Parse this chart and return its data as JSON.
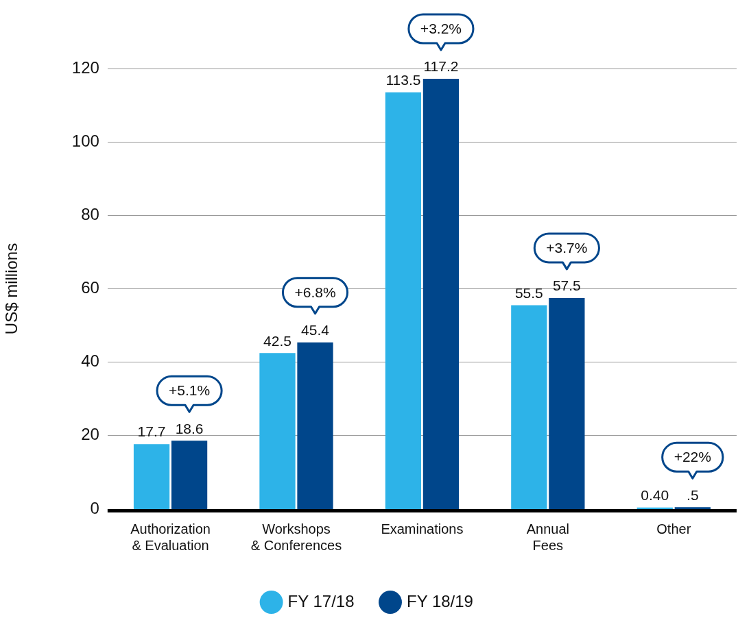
{
  "chart_data": {
    "type": "bar",
    "ylabel": "US$ millions",
    "categories": [
      "Authorization\n& Evaluation",
      "Workshops\n& Conferences",
      "Examinations",
      "Annual\nFees",
      "Other"
    ],
    "series": [
      {
        "name": "FY 17/18",
        "color": "#2db3e8",
        "values": [
          17.7,
          42.5,
          113.5,
          55.5,
          0.4
        ],
        "value_labels": [
          "17.7",
          "42.5",
          "113.5",
          "55.5",
          "0.40"
        ]
      },
      {
        "name": "FY 18/19",
        "color": "#00468b",
        "values": [
          18.6,
          45.4,
          117.2,
          57.5,
          0.5
        ],
        "value_labels": [
          "18.6",
          "45.4",
          "117.2",
          "57.5",
          ".5"
        ]
      }
    ],
    "ylim": [
      0,
      120
    ],
    "yticks": [
      0,
      20,
      40,
      60,
      80,
      100,
      120
    ],
    "grid": "y",
    "legend": "bottom",
    "annotations": [
      "+5.1%",
      "+6.8%",
      "+3.2%",
      "+3.7%",
      "+22%"
    ]
  }
}
